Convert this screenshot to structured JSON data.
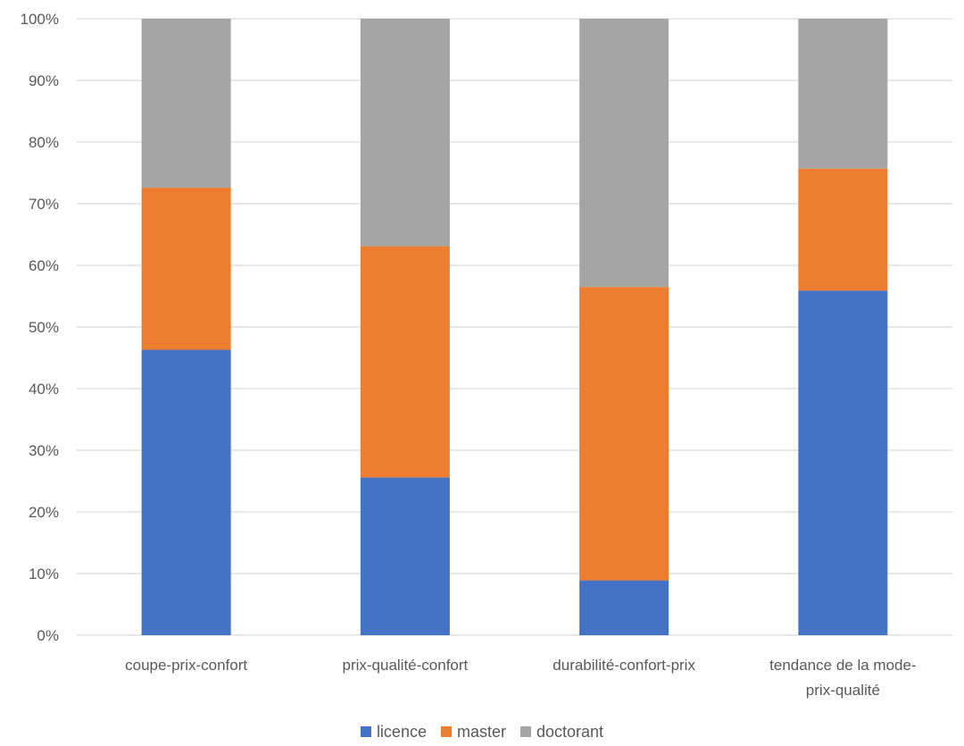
{
  "chart_data": {
    "type": "bar",
    "stacked": "percent",
    "title": "",
    "xlabel": "",
    "ylabel": "",
    "ylim": [
      0,
      100
    ],
    "yticks": [
      "0%",
      "10%",
      "20%",
      "30%",
      "40%",
      "50%",
      "60%",
      "70%",
      "80%",
      "90%",
      "100%"
    ],
    "grid": true,
    "legend_position": "bottom",
    "categories": [
      [
        "coupe-prix-confort"
      ],
      [
        "prix-qualité-confort"
      ],
      [
        "durabilité-confort-prix"
      ],
      [
        "tendance de la mode-",
        "prix-qualité"
      ]
    ],
    "series": [
      {
        "name": "licence",
        "color": "#4472c4",
        "values": [
          46.3,
          25.6,
          8.9,
          55.9
        ]
      },
      {
        "name": "master",
        "color": "#ed7d31",
        "values": [
          26.3,
          37.5,
          47.6,
          19.8
        ]
      },
      {
        "name": "doctorant",
        "color": "#a5a5a5",
        "values": [
          27.4,
          36.9,
          43.5,
          24.3
        ]
      }
    ]
  }
}
